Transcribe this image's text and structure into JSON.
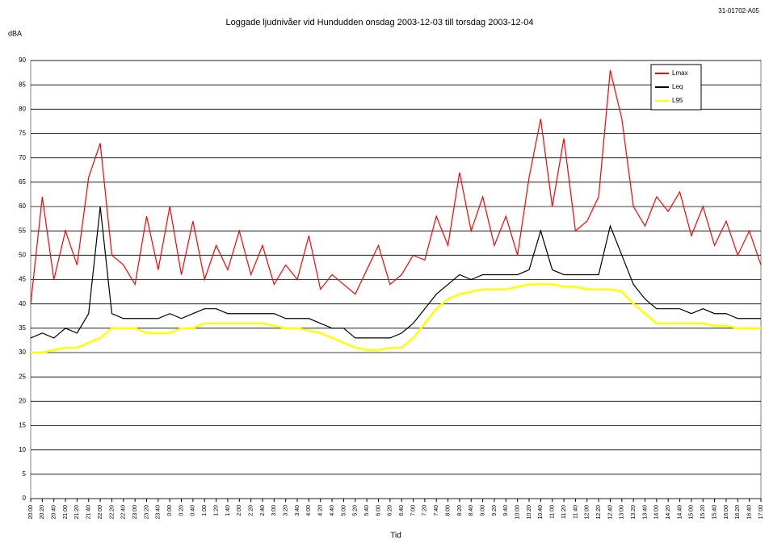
{
  "chart_data": {
    "type": "line",
    "title": "Loggade ljudnivåer vid Hundudden onsdag 2003-12-03 till torsdag 2003-12-04",
    "reference": "31-01702-A05",
    "y_label": "dBA",
    "x_label": "Tid",
    "categories": [
      "20:00",
      "20:20",
      "20:40",
      "21:00",
      "21:20",
      "21:40",
      "22:00",
      "22:20",
      "22:40",
      "23:00",
      "23:20",
      "23:40",
      "0:00",
      "0:20",
      "0:40",
      "1:00",
      "1:20",
      "1:40",
      "2:00",
      "2:20",
      "2:40",
      "3:00",
      "3:20",
      "3:40",
      "4:00",
      "4:20",
      "4:40",
      "5:00",
      "5:20",
      "5:40",
      "6:00",
      "6:20",
      "6:40",
      "7:00",
      "7:20",
      "7:40",
      "8:00",
      "8:20",
      "8:40",
      "9:00",
      "9:20",
      "9:40",
      "10:00",
      "10:20",
      "10:40",
      "11:00",
      "11:20",
      "11:40",
      "12:00",
      "12:20",
      "12:40",
      "13:00",
      "13:20",
      "13:40",
      "14:00",
      "14:20",
      "14:40",
      "15:00",
      "15:20",
      "15:40",
      "16:00",
      "16:20",
      "16:40",
      "17:00"
    ],
    "series": [
      {
        "name": "Lmax",
        "color": "#ff0000",
        "values": [
          40,
          62,
          45,
          55,
          48,
          66,
          73,
          50,
          48,
          44,
          58,
          47,
          60,
          46,
          57,
          45,
          52,
          47,
          55,
          46,
          52,
          44,
          48,
          45,
          54,
          43,
          46,
          44,
          42,
          47,
          52,
          44,
          46,
          50,
          49,
          58,
          52,
          67,
          55,
          62,
          52,
          58,
          50,
          66,
          78,
          60,
          74,
          55,
          57,
          62,
          88,
          78,
          60,
          56,
          62,
          59,
          63,
          54,
          60,
          52,
          57,
          50,
          55,
          48
        ]
      },
      {
        "name": "Leq",
        "color": "#000000",
        "values": [
          33,
          34,
          33,
          35,
          34,
          38,
          60,
          38,
          37,
          37,
          37,
          37,
          38,
          37,
          38,
          39,
          39,
          38,
          38,
          38,
          38,
          38,
          37,
          37,
          37,
          36,
          35,
          35,
          33,
          33,
          33,
          33,
          34,
          36,
          39,
          42,
          44,
          46,
          45,
          46,
          46,
          46,
          46,
          47,
          55,
          47,
          46,
          46,
          46,
          46,
          56,
          50,
          44,
          41,
          39,
          39,
          39,
          38,
          39,
          38,
          38,
          37,
          37,
          37
        ]
      },
      {
        "name": "L95",
        "color": "#ffff00",
        "values": [
          30,
          30,
          30.5,
          31,
          31,
          32,
          33,
          35,
          35,
          35,
          34,
          34,
          34,
          35,
          35,
          36,
          36,
          36,
          36,
          36,
          36,
          35.5,
          35,
          35,
          34.5,
          34,
          33,
          32,
          31,
          30.5,
          30.5,
          31,
          31,
          33,
          36,
          39,
          41,
          42,
          42.5,
          43,
          43,
          43,
          43.5,
          44,
          44,
          44,
          43.5,
          43.5,
          43,
          43,
          43,
          42.5,
          40,
          38,
          36,
          36,
          36,
          36,
          36,
          35.5,
          35.5,
          35,
          35,
          35
        ]
      }
    ],
    "ylim": [
      0,
      90
    ],
    "yticks": [
      0,
      5,
      10,
      15,
      20,
      25,
      30,
      35,
      40,
      45,
      50,
      55,
      60,
      65,
      70,
      75,
      80,
      85,
      90
    ],
    "grid": true,
    "legend": "upper right"
  }
}
